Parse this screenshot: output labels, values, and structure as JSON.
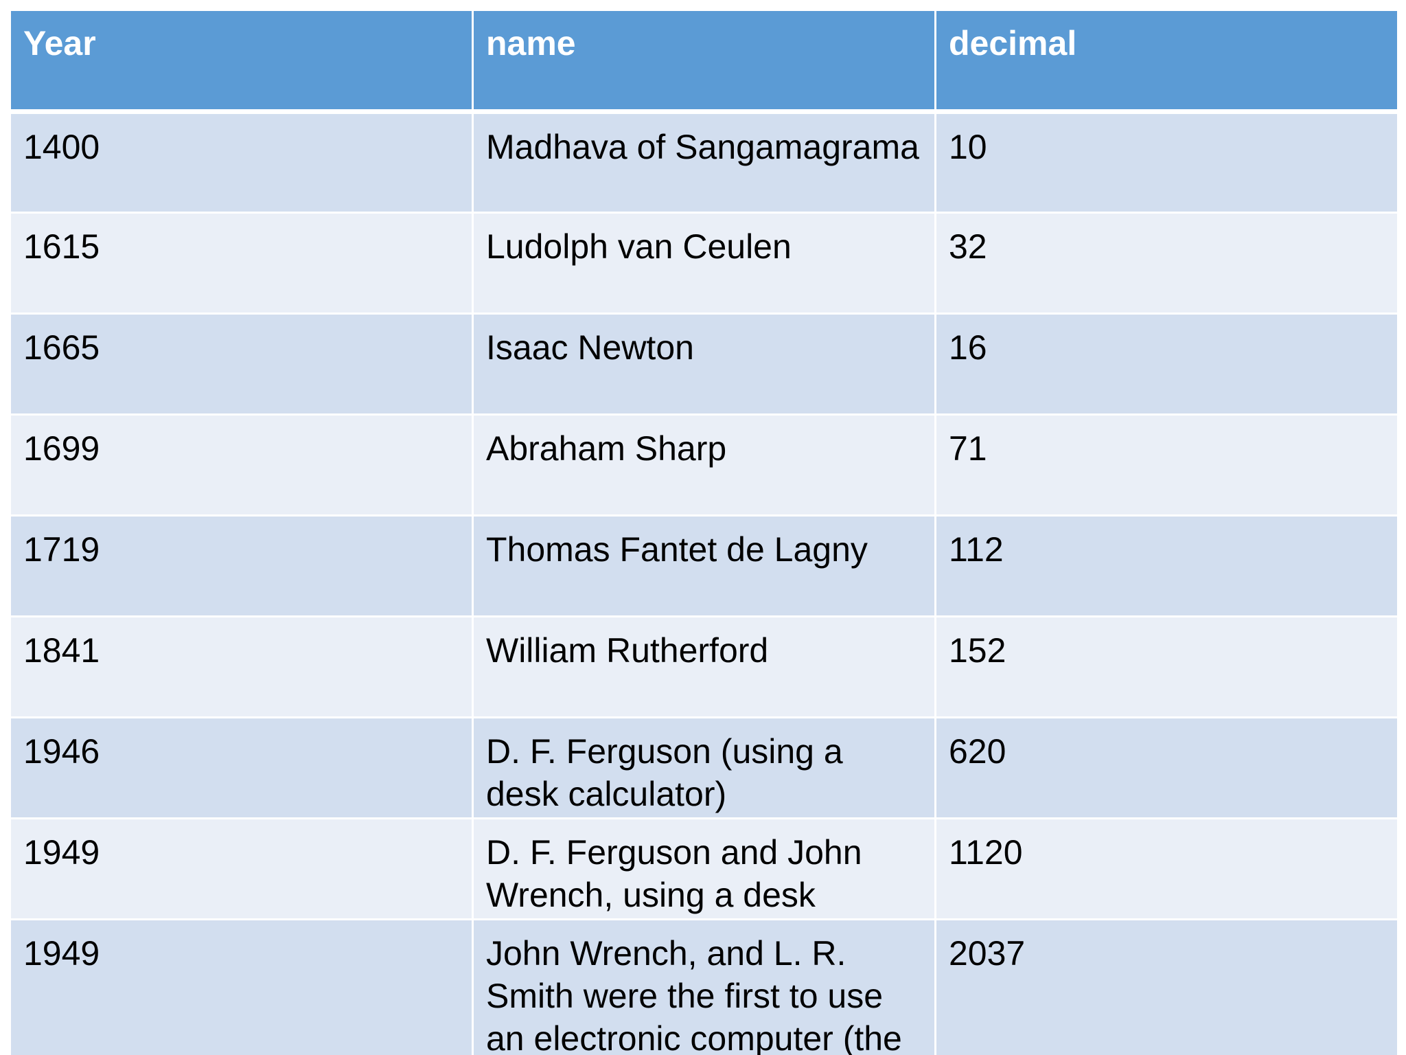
{
  "table": {
    "headers": [
      "Year",
      "name",
      "decimal"
    ],
    "rows": [
      [
        "1400",
        "Madhava of Sangamagrama",
        "10"
      ],
      [
        "1615",
        "Ludolph van Ceulen",
        "32"
      ],
      [
        "1665",
        "Isaac Newton",
        "16"
      ],
      [
        "1699",
        "Abraham Sharp",
        "71"
      ],
      [
        "1719",
        "Thomas Fantet de Lagny",
        "112"
      ],
      [
        "1841",
        "William Rutherford",
        "152"
      ],
      [
        "1946",
        "D. F. Ferguson (using a desk calculator)",
        "620"
      ],
      [
        "1949",
        "D. F. Ferguson and John Wrench, using a desk",
        "1120"
      ],
      [
        "1949",
        "John Wrench, and L. R. Smith were the first to use an electronic computer (the",
        "2037"
      ]
    ]
  },
  "colors": {
    "header_bg": "#5b9bd5",
    "row_odd_bg": "#d2deef",
    "row_even_bg": "#eaeff7"
  }
}
